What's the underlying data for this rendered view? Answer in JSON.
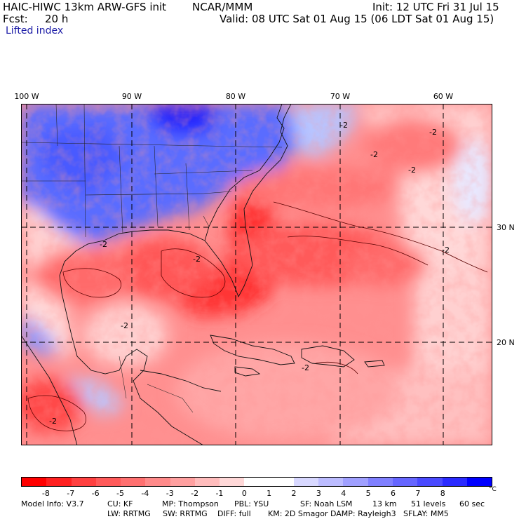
{
  "header": {
    "model": "HAIC-HIWC 13km ARW-GFS init",
    "org": "NCAR/MMM",
    "fcst_label": "Fcst:",
    "fcst_value": "20 h",
    "init": "Init: 12 UTC Fri 31 Jul 15",
    "valid": "Valid: 08 UTC Sat 01 Aug 15 (06 LDT Sat 01 Aug 15)",
    "field": "Lifted index"
  },
  "map": {
    "lon_labels": [
      "100 W",
      "90 W",
      "80 W",
      "70 W",
      "60 W"
    ],
    "lat_labels": [
      "30 N",
      "20 N"
    ],
    "contour_labels": [
      "-2",
      "-2",
      "-2",
      "-2",
      "-2",
      "-2",
      "-2",
      "-2",
      "-2",
      "-2"
    ]
  },
  "colorbar": {
    "colors": [
      "#ff0000",
      "#ff2020",
      "#ff4040",
      "#ff5a5a",
      "#ff7070",
      "#ff8a8a",
      "#ffa0a0",
      "#ffbcbc",
      "#ffd8d8",
      "#ffffff",
      "#ffffff",
      "#d8d8ff",
      "#bcbcff",
      "#a0a0ff",
      "#8080ff",
      "#6666ff",
      "#4a4aff",
      "#2a2aff",
      "#0000ff"
    ],
    "ticks": [
      "-8",
      "-7",
      "-6",
      "-5",
      "-4",
      "-3",
      "-2",
      "-1",
      "0",
      "1",
      "2",
      "3",
      "4",
      "5",
      "6",
      "7",
      "8"
    ],
    "unit": "°C"
  },
  "footer": {
    "line1": [
      "Model Info: V3.7",
      "CU: KF",
      "MP: Thompson",
      "PBL: YSU",
      "SF: Noah LSM",
      "13 km",
      "51 levels",
      "60 sec"
    ],
    "line2": [
      "LW: RRTMG",
      "SW: RRTMG",
      "DIFF: full",
      "KM: 2D Smagor",
      "DAMP: Rayleigh3",
      "SFLAY: MM5"
    ]
  }
}
